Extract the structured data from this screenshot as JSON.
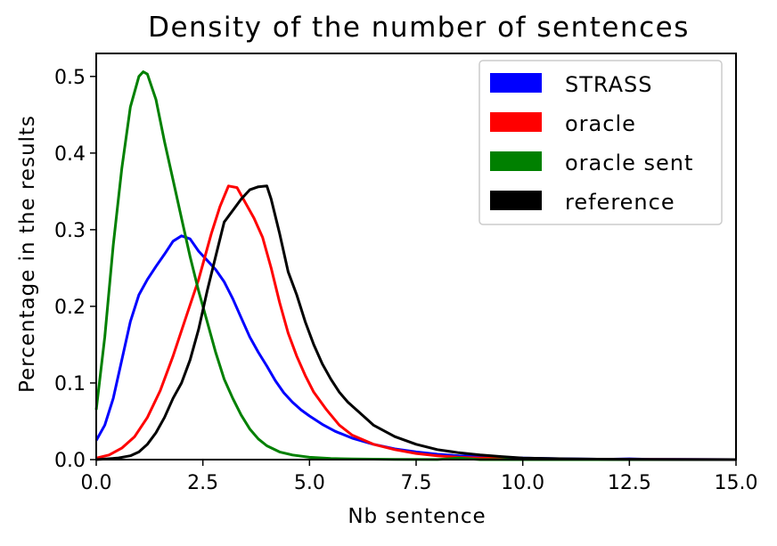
{
  "chart_data": {
    "type": "line",
    "title": "Density of the number of sentences",
    "xlabel": "Nb sentence",
    "ylabel": "Percentage in the results",
    "xlim": [
      0,
      15
    ],
    "ylim": [
      0,
      0.53
    ],
    "xticks": [
      0,
      2.5,
      5,
      7.5,
      10,
      12.5,
      15
    ],
    "xtick_labels": [
      "0.0",
      "2.5",
      "5.0",
      "7.5",
      "10.0",
      "12.5",
      "15.0"
    ],
    "yticks": [
      0,
      0.1,
      0.2,
      0.3,
      0.4,
      0.5
    ],
    "ytick_labels": [
      "0.0",
      "0.1",
      "0.2",
      "0.3",
      "0.4",
      "0.5"
    ],
    "grid": false,
    "legend_position": "top-right",
    "series": [
      {
        "name": "STRASS",
        "color": "#0000ff",
        "points": [
          [
            0,
            0.025
          ],
          [
            0.2,
            0.045
          ],
          [
            0.4,
            0.08
          ],
          [
            0.6,
            0.13
          ],
          [
            0.8,
            0.18
          ],
          [
            1.0,
            0.215
          ],
          [
            1.2,
            0.235
          ],
          [
            1.4,
            0.252
          ],
          [
            1.6,
            0.268
          ],
          [
            1.8,
            0.285
          ],
          [
            2.0,
            0.292
          ],
          [
            2.2,
            0.288
          ],
          [
            2.4,
            0.272
          ],
          [
            2.6,
            0.26
          ],
          [
            2.8,
            0.248
          ],
          [
            3.0,
            0.232
          ],
          [
            3.2,
            0.21
          ],
          [
            3.4,
            0.185
          ],
          [
            3.6,
            0.16
          ],
          [
            3.8,
            0.14
          ],
          [
            4.0,
            0.122
          ],
          [
            4.2,
            0.103
          ],
          [
            4.4,
            0.087
          ],
          [
            4.6,
            0.075
          ],
          [
            4.8,
            0.065
          ],
          [
            5.0,
            0.057
          ],
          [
            5.3,
            0.046
          ],
          [
            5.6,
            0.037
          ],
          [
            6.0,
            0.028
          ],
          [
            6.5,
            0.02
          ],
          [
            7.0,
            0.014
          ],
          [
            7.5,
            0.01
          ],
          [
            8.0,
            0.007
          ],
          [
            8.5,
            0.005
          ],
          [
            9.0,
            0.004
          ],
          [
            10.0,
            0.002
          ],
          [
            11.0,
            0.001
          ],
          [
            12.0,
            0.0005
          ],
          [
            12.5,
            0.001
          ],
          [
            13.0,
            0.0003
          ],
          [
            15.0,
            0
          ]
        ]
      },
      {
        "name": "oracle",
        "color": "#ff0000",
        "points": [
          [
            0,
            0.002
          ],
          [
            0.3,
            0.006
          ],
          [
            0.6,
            0.015
          ],
          [
            0.9,
            0.03
          ],
          [
            1.2,
            0.055
          ],
          [
            1.5,
            0.09
          ],
          [
            1.8,
            0.135
          ],
          [
            2.1,
            0.185
          ],
          [
            2.4,
            0.235
          ],
          [
            2.7,
            0.295
          ],
          [
            2.9,
            0.33
          ],
          [
            3.1,
            0.357
          ],
          [
            3.3,
            0.355
          ],
          [
            3.5,
            0.335
          ],
          [
            3.7,
            0.315
          ],
          [
            3.9,
            0.29
          ],
          [
            4.1,
            0.25
          ],
          [
            4.3,
            0.205
          ],
          [
            4.5,
            0.165
          ],
          [
            4.7,
            0.135
          ],
          [
            4.9,
            0.11
          ],
          [
            5.1,
            0.088
          ],
          [
            5.4,
            0.065
          ],
          [
            5.7,
            0.045
          ],
          [
            6.0,
            0.032
          ],
          [
            6.5,
            0.02
          ],
          [
            7.0,
            0.013
          ],
          [
            7.5,
            0.008
          ],
          [
            8.0,
            0.005
          ],
          [
            8.5,
            0.003
          ],
          [
            9.0,
            0.002
          ],
          [
            10.0,
            0.001
          ],
          [
            11.0,
            0.0003
          ],
          [
            12.0,
            0.0002
          ],
          [
            15.0,
            0
          ]
        ]
      },
      {
        "name": "oracle sent",
        "color": "#008000",
        "points": [
          [
            0,
            0.065
          ],
          [
            0.2,
            0.16
          ],
          [
            0.4,
            0.28
          ],
          [
            0.6,
            0.38
          ],
          [
            0.8,
            0.46
          ],
          [
            1.0,
            0.5
          ],
          [
            1.1,
            0.506
          ],
          [
            1.2,
            0.503
          ],
          [
            1.4,
            0.47
          ],
          [
            1.6,
            0.415
          ],
          [
            1.8,
            0.365
          ],
          [
            2.0,
            0.315
          ],
          [
            2.2,
            0.265
          ],
          [
            2.4,
            0.22
          ],
          [
            2.6,
            0.18
          ],
          [
            2.8,
            0.14
          ],
          [
            3.0,
            0.105
          ],
          [
            3.2,
            0.08
          ],
          [
            3.4,
            0.058
          ],
          [
            3.6,
            0.04
          ],
          [
            3.8,
            0.027
          ],
          [
            4.0,
            0.018
          ],
          [
            4.3,
            0.01
          ],
          [
            4.6,
            0.006
          ],
          [
            5.0,
            0.003
          ],
          [
            5.5,
            0.0015
          ],
          [
            6.0,
            0.0008
          ],
          [
            7.0,
            0.0003
          ],
          [
            8.0,
            0.0001
          ],
          [
            8.5,
            0.002
          ],
          [
            9.0,
            0
          ],
          [
            15.0,
            0
          ]
        ]
      },
      {
        "name": "reference",
        "color": "#000000",
        "points": [
          [
            0,
            0
          ],
          [
            0.5,
            0.002
          ],
          [
            0.8,
            0.005
          ],
          [
            1.0,
            0.01
          ],
          [
            1.2,
            0.02
          ],
          [
            1.4,
            0.035
          ],
          [
            1.6,
            0.055
          ],
          [
            1.8,
            0.08
          ],
          [
            2.0,
            0.1
          ],
          [
            2.2,
            0.13
          ],
          [
            2.4,
            0.17
          ],
          [
            2.6,
            0.22
          ],
          [
            2.8,
            0.265
          ],
          [
            3.0,
            0.31
          ],
          [
            3.2,
            0.325
          ],
          [
            3.4,
            0.34
          ],
          [
            3.6,
            0.352
          ],
          [
            3.8,
            0.356
          ],
          [
            4.0,
            0.357
          ],
          [
            4.1,
            0.34
          ],
          [
            4.3,
            0.295
          ],
          [
            4.5,
            0.245
          ],
          [
            4.7,
            0.215
          ],
          [
            4.9,
            0.18
          ],
          [
            5.1,
            0.15
          ],
          [
            5.3,
            0.125
          ],
          [
            5.5,
            0.105
          ],
          [
            5.7,
            0.088
          ],
          [
            5.9,
            0.075
          ],
          [
            6.2,
            0.06
          ],
          [
            6.5,
            0.045
          ],
          [
            7.0,
            0.03
          ],
          [
            7.5,
            0.02
          ],
          [
            8.0,
            0.013
          ],
          [
            8.5,
            0.009
          ],
          [
            9.0,
            0.006
          ],
          [
            9.5,
            0.004
          ],
          [
            10.0,
            0.002
          ],
          [
            11.0,
            0.001
          ],
          [
            12.0,
            0.0005
          ],
          [
            15.0,
            0
          ]
        ]
      }
    ]
  }
}
